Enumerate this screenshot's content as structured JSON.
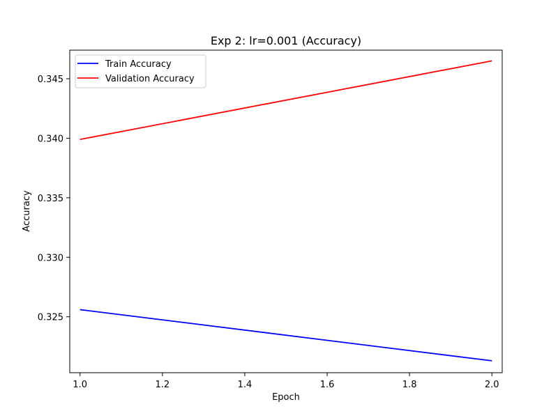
{
  "chart_data": {
    "type": "line",
    "title": "Exp 2: lr=0.001 (Accuracy)",
    "xlabel": "Epoch",
    "ylabel": "Accuracy",
    "xlim": [
      0.975,
      2.025
    ],
    "ylim": [
      0.3203,
      0.3474
    ],
    "x_ticks": [
      1.0,
      1.2,
      1.4,
      1.6,
      1.8,
      2.0
    ],
    "x_tick_labels": [
      "1.0",
      "1.2",
      "1.4",
      "1.6",
      "1.8",
      "2.0"
    ],
    "y_ticks": [
      0.325,
      0.33,
      0.335,
      0.34,
      0.345
    ],
    "y_tick_labels": [
      "0.325",
      "0.330",
      "0.335",
      "0.340",
      "0.345"
    ],
    "grid": false,
    "legend_position": "upper-left",
    "series": [
      {
        "name": "Train Accuracy",
        "color": "#0000ff",
        "x": [
          1.0,
          2.0
        ],
        "y": [
          0.3256,
          0.3213
        ]
      },
      {
        "name": "Validation Accuracy",
        "color": "#ff0000",
        "x": [
          1.0,
          2.0
        ],
        "y": [
          0.3399,
          0.3465
        ]
      }
    ]
  }
}
